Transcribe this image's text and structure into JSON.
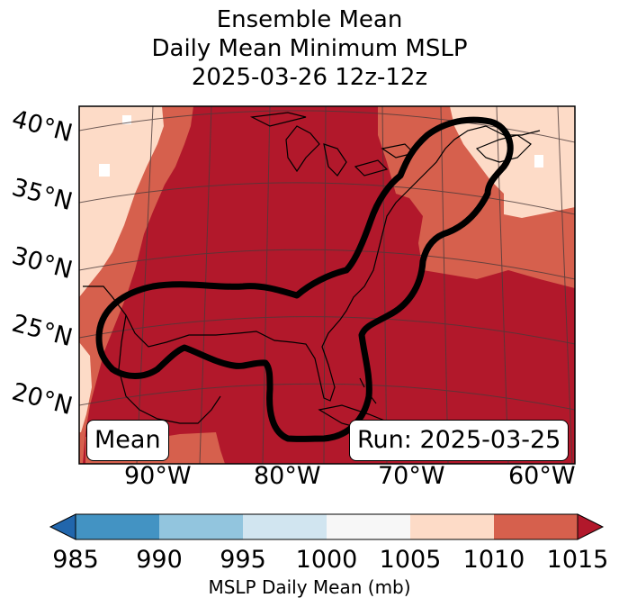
{
  "title": {
    "line1": "Ensemble Mean",
    "line2": "Daily Mean Minimum MSLP",
    "line3": "2025-03-26 12z-12z"
  },
  "map": {
    "lat_labels": [
      "40°N",
      "35°N",
      "30°N",
      "25°N",
      "20°N"
    ],
    "lon_labels": [
      "90°W",
      "80°W",
      "70°W",
      "60°W"
    ],
    "box_left": "Mean",
    "box_right": "Run: 2025-03-25",
    "field_colors": {
      "1015": "#b2182b",
      "1010": "#d6604d",
      "1005": "#fddbc7",
      "1000": "#f7f7f7"
    },
    "contour_color": "#000000"
  },
  "colorbar": {
    "label": "MSLP Daily Mean (mb)",
    "ticks": [
      "985",
      "990",
      "995",
      "1000",
      "1005",
      "1010",
      "1015"
    ],
    "colors": [
      "#2166ac",
      "#4393c3",
      "#92c5de",
      "#d1e5f0",
      "#f7f7f7",
      "#fddbc7",
      "#d6604d",
      "#b2182b"
    ]
  }
}
